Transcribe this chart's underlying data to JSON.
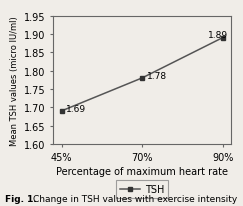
{
  "x_labels": [
    "45%",
    "70%",
    "90%"
  ],
  "x_values": [
    0,
    1,
    2
  ],
  "y_values": [
    1.69,
    1.78,
    1.89
  ],
  "y_annotations": [
    "1.69",
    "1.78",
    "1.89"
  ],
  "ylim": [
    1.6,
    1.95
  ],
  "yticks": [
    1.6,
    1.65,
    1.7,
    1.75,
    1.8,
    1.85,
    1.9,
    1.95
  ],
  "ylabel": "Mean TSH values (micro IU/ml)",
  "xlabel": "Percentage of maximum heart rate",
  "legend_label": "TSH",
  "caption_bold": "Fig. 1.",
  "caption_normal": " Change in TSH values with exercise intensity",
  "line_color": "#555555",
  "marker": "s",
  "marker_color": "#333333",
  "outer_bg": "#c8c4be",
  "inner_bg": "#f0ede8",
  "plot_bg": "#f0ede8"
}
